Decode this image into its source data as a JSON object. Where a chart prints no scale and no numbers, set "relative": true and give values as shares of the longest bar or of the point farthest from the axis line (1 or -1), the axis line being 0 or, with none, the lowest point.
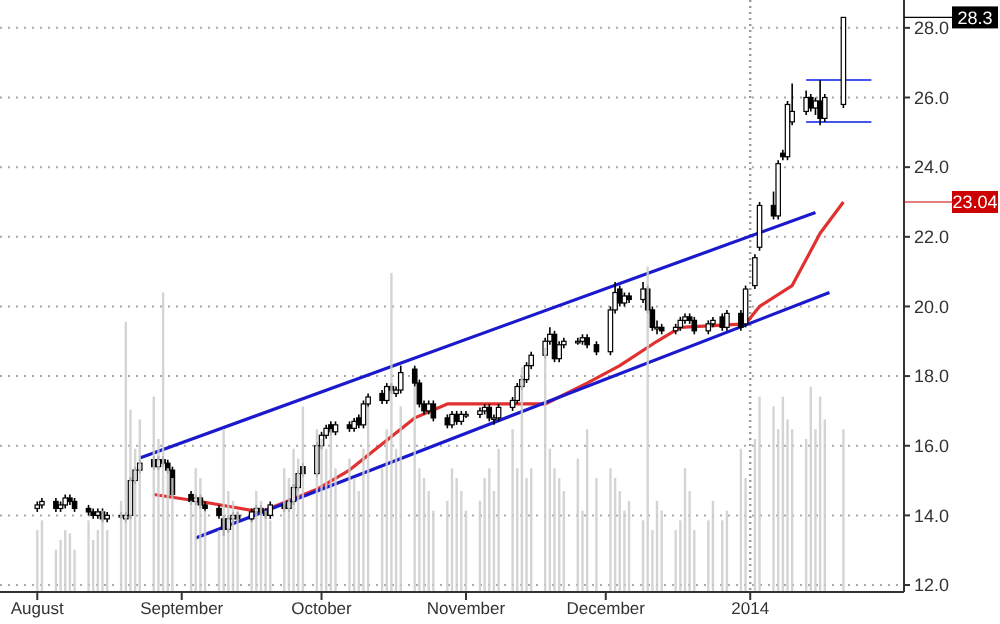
{
  "chart_data": [
    {
      "type": "candlestick",
      "x": [
        "2013-08-01",
        "2013-08-02",
        "2013-08-05",
        "2013-08-06",
        "2013-08-07",
        "2013-08-08",
        "2013-08-09",
        "2013-08-12",
        "2013-08-13",
        "2013-08-14",
        "2013-08-15",
        "2013-08-16",
        "2013-08-19",
        "2013-08-20",
        "2013-08-21",
        "2013-08-22",
        "2013-08-23",
        "2013-08-26",
        "2013-08-27",
        "2013-08-28",
        "2013-08-29",
        "2013-08-30",
        "2013-09-03",
        "2013-09-04",
        "2013-09-05",
        "2013-09-06",
        "2013-09-09",
        "2013-09-10",
        "2013-09-11",
        "2013-09-12",
        "2013-09-13",
        "2013-09-16",
        "2013-09-17",
        "2013-09-18",
        "2013-09-19",
        "2013-09-20",
        "2013-09-23",
        "2013-09-24",
        "2013-09-25",
        "2013-09-26",
        "2013-09-27",
        "2013-09-30",
        "2013-10-01",
        "2013-10-02",
        "2013-10-03",
        "2013-10-04",
        "2013-10-07",
        "2013-10-08",
        "2013-10-09",
        "2013-10-10",
        "2013-10-11",
        "2013-10-14",
        "2013-10-15",
        "2013-10-16",
        "2013-10-17",
        "2013-10-18",
        "2013-10-21",
        "2013-10-22",
        "2013-10-23",
        "2013-10-24",
        "2013-10-25",
        "2013-10-28",
        "2013-10-29",
        "2013-10-30",
        "2013-10-31",
        "2013-11-01",
        "2013-11-04",
        "2013-11-05",
        "2013-11-06",
        "2013-11-07",
        "2013-11-08",
        "2013-11-11",
        "2013-11-12",
        "2013-11-13",
        "2013-11-14",
        "2013-11-15",
        "2013-11-18",
        "2013-11-19",
        "2013-11-20",
        "2013-11-21",
        "2013-11-22",
        "2013-11-25",
        "2013-11-26",
        "2013-11-27",
        "2013-11-29",
        "2013-12-02",
        "2013-12-03",
        "2013-12-04",
        "2013-12-05",
        "2013-12-06",
        "2013-12-09",
        "2013-12-10",
        "2013-12-11",
        "2013-12-12",
        "2013-12-13",
        "2013-12-16",
        "2013-12-17",
        "2013-12-18",
        "2013-12-19",
        "2013-12-20",
        "2013-12-23",
        "2013-12-24",
        "2013-12-26",
        "2013-12-27",
        "2013-12-30",
        "2013-12-31",
        "2014-01-02",
        "2014-01-03",
        "2014-01-06",
        "2014-01-07",
        "2014-01-08",
        "2014-01-09",
        "2014-01-10",
        "2014-01-13",
        "2014-01-14",
        "2014-01-15",
        "2014-01-16",
        "2014-01-17",
        "2014-01-21"
      ],
      "ohlc": [
        [
          14.2,
          14.4,
          14.1,
          14.3
        ],
        [
          14.3,
          14.5,
          14.2,
          14.4
        ],
        [
          14.4,
          14.5,
          14.1,
          14.2
        ],
        [
          14.2,
          14.4,
          14.1,
          14.3
        ],
        [
          14.3,
          14.6,
          14.2,
          14.5
        ],
        [
          14.5,
          14.6,
          14.3,
          14.4
        ],
        [
          14.4,
          14.5,
          14.1,
          14.2
        ],
        [
          14.2,
          14.3,
          14.0,
          14.1
        ],
        [
          14.1,
          14.2,
          13.9,
          14.0
        ],
        [
          14.0,
          14.2,
          13.9,
          14.1
        ],
        [
          14.1,
          14.2,
          13.8,
          13.9
        ],
        [
          13.9,
          14.1,
          13.8,
          14.0
        ],
        [
          14.0,
          14.1,
          13.9,
          14.0
        ],
        [
          13.9,
          14.1,
          13.8,
          14.0
        ],
        [
          14.0,
          15.1,
          13.9,
          15.0
        ],
        [
          15.0,
          15.4,
          14.9,
          15.3
        ],
        [
          15.3,
          15.6,
          15.2,
          15.5
        ],
        [
          15.6,
          15.7,
          15.3,
          15.4
        ],
        [
          15.4,
          15.7,
          15.3,
          15.6
        ],
        [
          15.6,
          15.7,
          15.4,
          15.5
        ],
        [
          15.5,
          15.6,
          15.2,
          15.3
        ],
        [
          15.3,
          15.4,
          14.5,
          14.6
        ],
        [
          14.6,
          14.7,
          14.3,
          14.4
        ],
        [
          14.4,
          14.6,
          14.3,
          14.5
        ],
        [
          14.5,
          14.6,
          14.2,
          14.3
        ],
        [
          14.3,
          14.4,
          14.1,
          14.2
        ],
        [
          14.2,
          14.3,
          13.9,
          14.0
        ],
        [
          13.9,
          14.0,
          13.4,
          13.6
        ],
        [
          13.6,
          14.0,
          13.5,
          13.9
        ],
        [
          13.9,
          14.1,
          13.8,
          14.0
        ],
        [
          14.0,
          14.1,
          13.8,
          13.9
        ],
        [
          13.9,
          14.2,
          13.8,
          14.1
        ],
        [
          14.1,
          14.3,
          14.0,
          14.2
        ],
        [
          14.2,
          14.3,
          14.0,
          14.1
        ],
        [
          14.1,
          14.2,
          13.9,
          14.0
        ],
        [
          14.0,
          14.4,
          13.9,
          14.3
        ],
        [
          14.3,
          14.4,
          14.1,
          14.2
        ],
        [
          14.2,
          14.5,
          14.1,
          14.4
        ],
        [
          14.4,
          14.9,
          14.3,
          14.8
        ],
        [
          14.8,
          15.3,
          14.7,
          15.2
        ],
        [
          15.4,
          15.5,
          15.1,
          15.2
        ],
        [
          15.2,
          16.1,
          15.1,
          16.0
        ],
        [
          16.0,
          16.4,
          15.9,
          16.3
        ],
        [
          16.3,
          16.6,
          16.2,
          16.5
        ],
        [
          16.6,
          16.7,
          16.3,
          16.4
        ],
        [
          16.4,
          16.7,
          16.3,
          16.6
        ],
        [
          16.6,
          16.7,
          16.4,
          16.5
        ],
        [
          16.5,
          16.8,
          16.4,
          16.7
        ],
        [
          16.8,
          16.9,
          16.5,
          16.6
        ],
        [
          16.6,
          17.3,
          16.5,
          17.2
        ],
        [
          17.2,
          17.5,
          17.1,
          17.4
        ],
        [
          17.5,
          17.6,
          17.2,
          17.3
        ],
        [
          17.3,
          17.8,
          17.2,
          17.7
        ],
        [
          17.7,
          17.8,
          17.5,
          17.6
        ],
        [
          17.5,
          17.7,
          17.4,
          17.6
        ],
        [
          17.6,
          18.3,
          17.5,
          18.1
        ],
        [
          18.2,
          18.3,
          17.7,
          17.8
        ],
        [
          17.8,
          17.9,
          17.1,
          17.2
        ],
        [
          17.2,
          17.3,
          16.9,
          17.0
        ],
        [
          17.0,
          17.3,
          16.9,
          17.2
        ],
        [
          17.2,
          17.3,
          16.7,
          16.8
        ],
        [
          16.8,
          16.9,
          16.5,
          16.6
        ],
        [
          16.6,
          17.0,
          16.5,
          16.9
        ],
        [
          16.9,
          17.0,
          16.6,
          16.7
        ],
        [
          16.7,
          17.0,
          16.6,
          16.9
        ],
        [
          16.9,
          17.0,
          16.8,
          16.9
        ],
        [
          16.9,
          17.1,
          16.8,
          17.0
        ],
        [
          17.0,
          17.2,
          16.9,
          17.1
        ],
        [
          17.1,
          17.2,
          16.7,
          16.8
        ],
        [
          16.8,
          16.9,
          16.6,
          16.8
        ],
        [
          16.8,
          17.2,
          16.7,
          17.1
        ],
        [
          17.1,
          17.4,
          17.0,
          17.3
        ],
        [
          17.3,
          17.8,
          17.2,
          17.7
        ],
        [
          17.7,
          18.0,
          17.6,
          17.9
        ],
        [
          17.9,
          18.4,
          17.8,
          18.3
        ],
        [
          18.3,
          18.7,
          18.2,
          18.6
        ],
        [
          18.6,
          19.1,
          18.5,
          19.0
        ],
        [
          19.0,
          19.4,
          18.9,
          19.2
        ],
        [
          19.2,
          19.3,
          18.4,
          18.5
        ],
        [
          18.5,
          19.0,
          18.4,
          18.9
        ],
        [
          18.9,
          19.1,
          18.8,
          19.0
        ],
        [
          19.0,
          19.1,
          18.9,
          19.0
        ],
        [
          19.0,
          19.2,
          18.9,
          19.1
        ],
        [
          19.1,
          19.2,
          18.8,
          18.9
        ],
        [
          18.9,
          19.0,
          18.6,
          18.7
        ],
        [
          18.7,
          20.0,
          18.6,
          19.9
        ],
        [
          19.9,
          20.7,
          19.8,
          20.4
        ],
        [
          20.5,
          20.6,
          20.0,
          20.1
        ],
        [
          20.1,
          20.4,
          20.0,
          20.3
        ],
        [
          20.3,
          20.4,
          20.1,
          20.2
        ],
        [
          20.2,
          20.7,
          20.1,
          20.5
        ],
        [
          20.5,
          20.6,
          19.8,
          19.9
        ],
        [
          19.9,
          20.0,
          19.3,
          19.4
        ],
        [
          19.4,
          19.6,
          19.2,
          19.4
        ],
        [
          19.4,
          19.5,
          19.2,
          19.3
        ],
        [
          19.3,
          19.5,
          19.2,
          19.4
        ],
        [
          19.4,
          19.7,
          19.3,
          19.6
        ],
        [
          19.6,
          19.8,
          19.5,
          19.7
        ],
        [
          19.7,
          19.8,
          19.5,
          19.6
        ],
        [
          19.6,
          19.7,
          19.2,
          19.3
        ],
        [
          19.3,
          19.6,
          19.2,
          19.5
        ],
        [
          19.5,
          19.7,
          19.4,
          19.6
        ],
        [
          19.7,
          19.8,
          19.3,
          19.4
        ],
        [
          19.4,
          19.9,
          19.3,
          19.8
        ],
        [
          19.8,
          19.9,
          19.3,
          19.4
        ],
        [
          19.5,
          20.6,
          19.4,
          20.5
        ],
        [
          20.6,
          21.5,
          20.5,
          21.4
        ],
        [
          21.7,
          23.0,
          21.6,
          22.9
        ],
        [
          22.9,
          23.3,
          22.5,
          22.6
        ],
        [
          22.6,
          24.2,
          22.5,
          24.1
        ],
        [
          24.4,
          24.5,
          24.2,
          24.3
        ],
        [
          24.3,
          25.9,
          24.2,
          25.8
        ],
        [
          25.3,
          26.4,
          25.2,
          25.6
        ],
        [
          25.6,
          26.2,
          25.5,
          26.0
        ],
        [
          26.0,
          26.1,
          25.6,
          25.7
        ],
        [
          25.7,
          26.0,
          25.5,
          25.9
        ],
        [
          25.9,
          26.5,
          25.2,
          25.4
        ],
        [
          25.4,
          26.1,
          25.3,
          26.0
        ],
        [
          25.8,
          28.3,
          25.7,
          28.3
        ]
      ],
      "series": [
        {
          "type": "line",
          "color": "#e03030",
          "x": [
            "2013-08-26",
            "2013-09-05",
            "2013-09-18",
            "2013-09-30",
            "2013-10-07",
            "2013-10-21",
            "2013-10-28",
            "2013-11-18",
            "2013-11-27",
            "2013-12-04",
            "2013-12-12",
            "2013-12-17",
            "2013-12-31",
            "2014-01-03",
            "2014-01-10",
            "2014-01-16",
            "2014-01-21"
          ],
          "values": [
            14.6,
            14.4,
            14.1,
            14.75,
            15.3,
            16.8,
            17.2,
            17.2,
            17.8,
            18.3,
            19.0,
            19.4,
            19.5,
            20.0,
            20.6,
            22.1,
            23.0
          ]
        },
        {
          "type": "line",
          "color": "#1a1acc",
          "x": [
            "2013-08-23",
            "2014-01-15"
          ],
          "values": [
            15.65,
            22.7
          ]
        },
        {
          "type": "line",
          "color": "#1a1acc",
          "x": [
            "2013-09-04",
            "2014-01-18"
          ],
          "values": [
            13.35,
            20.4
          ]
        },
        {
          "type": "line",
          "color": "#4455ee",
          "x": [
            "2014-01-13",
            "2014-01-27"
          ],
          "values": [
            26.5,
            26.5
          ]
        },
        {
          "type": "line",
          "color": "#4455ee",
          "x": [
            "2014-01-13",
            "2014-01-27"
          ],
          "values": [
            25.3,
            25.3
          ]
        }
      ],
      "xlim": [
        "2013-07-24",
        "2014-02-03"
      ],
      "xticks": [
        {
          "value": "2013-08-01",
          "label": "August"
        },
        {
          "value": "2013-09-01",
          "label": "September"
        },
        {
          "value": "2013-10-01",
          "label": "October"
        },
        {
          "value": "2013-11-01",
          "label": "November"
        },
        {
          "value": "2013-12-01",
          "label": "December"
        },
        {
          "value": "2014-01-01",
          "label": "2014"
        }
      ],
      "ylim": [
        11.8,
        28.8
      ],
      "yticks": [
        {
          "value": 12,
          "label": "12.0"
        },
        {
          "value": 14,
          "label": "14.0"
        },
        {
          "value": 16,
          "label": "16.0"
        },
        {
          "value": 18,
          "label": "18.0"
        },
        {
          "value": 20,
          "label": "20.0"
        },
        {
          "value": 22,
          "label": "22.0"
        },
        {
          "value": 24,
          "label": "24.0"
        },
        {
          "value": 26,
          "label": "26.0"
        },
        {
          "value": 28,
          "label": "28.0"
        }
      ],
      "grid": "y",
      "ref_lines": [
        {
          "axis": "x",
          "value": "2014-01-01",
          "line_style": "dotted",
          "color": "#999999"
        }
      ],
      "annotations": [
        "28.3",
        "23.04"
      ]
    },
    {
      "type": "bar",
      "relative": true,
      "color": "#cccccc",
      "xlim": [
        "2013-07-24",
        "2014-02-03"
      ],
      "x": [
        "2013-08-01",
        "2013-08-02",
        "2013-08-05",
        "2013-08-06",
        "2013-08-07",
        "2013-08-08",
        "2013-08-09",
        "2013-08-12",
        "2013-08-13",
        "2013-08-14",
        "2013-08-15",
        "2013-08-16",
        "2013-08-19",
        "2013-08-20",
        "2013-08-21",
        "2013-08-22",
        "2013-08-23",
        "2013-08-26",
        "2013-08-27",
        "2013-08-28",
        "2013-08-29",
        "2013-08-30",
        "2013-09-03",
        "2013-09-04",
        "2013-09-05",
        "2013-09-06",
        "2013-09-09",
        "2013-09-10",
        "2013-09-11",
        "2013-09-12",
        "2013-09-13",
        "2013-09-16",
        "2013-09-17",
        "2013-09-18",
        "2013-09-19",
        "2013-09-20",
        "2013-09-23",
        "2013-09-24",
        "2013-09-25",
        "2013-09-26",
        "2013-09-27",
        "2013-09-30",
        "2013-10-01",
        "2013-10-02",
        "2013-10-03",
        "2013-10-04",
        "2013-10-07",
        "2013-10-08",
        "2013-10-09",
        "2013-10-10",
        "2013-10-11",
        "2013-10-14",
        "2013-10-15",
        "2013-10-16",
        "2013-10-17",
        "2013-10-18",
        "2013-10-21",
        "2013-10-22",
        "2013-10-23",
        "2013-10-24",
        "2013-10-25",
        "2013-10-28",
        "2013-10-29",
        "2013-10-30",
        "2013-10-31",
        "2013-11-01",
        "2013-11-04",
        "2013-11-05",
        "2013-11-06",
        "2013-11-07",
        "2013-11-08",
        "2013-11-11",
        "2013-11-12",
        "2013-11-13",
        "2013-11-14",
        "2013-11-15",
        "2013-11-18",
        "2013-11-19",
        "2013-11-20",
        "2013-11-21",
        "2013-11-22",
        "2013-11-25",
        "2013-11-26",
        "2013-11-27",
        "2013-11-29",
        "2013-12-02",
        "2013-12-03",
        "2013-12-04",
        "2013-12-05",
        "2013-12-06",
        "2013-12-09",
        "2013-12-10",
        "2013-12-11",
        "2013-12-12",
        "2013-12-13",
        "2013-12-16",
        "2013-12-17",
        "2013-12-18",
        "2013-12-19",
        "2013-12-20",
        "2013-12-23",
        "2013-12-24",
        "2013-12-26",
        "2013-12-27",
        "2013-12-30",
        "2013-12-31",
        "2014-01-02",
        "2014-01-03",
        "2014-01-06",
        "2014-01-07",
        "2014-01-08",
        "2014-01-09",
        "2014-01-10",
        "2014-01-13",
        "2014-01-14",
        "2014-01-15",
        "2014-01-16",
        "2014-01-17",
        "2014-01-21"
      ],
      "values": [
        0.19,
        0.22,
        0.13,
        0.16,
        0.19,
        0.18,
        0.13,
        0.22,
        0.16,
        0.19,
        0.25,
        0.19,
        0.28,
        0.83,
        0.56,
        0.44,
        0.53,
        0.6,
        0.47,
        0.92,
        0.38,
        0.35,
        0.28,
        0.38,
        0.35,
        0.25,
        0.19,
        0.5,
        0.31,
        0.28,
        0.25,
        0.22,
        0.31,
        0.28,
        0.25,
        0.22,
        0.38,
        0.35,
        0.44,
        0.41,
        0.57,
        0.5,
        0.47,
        0.44,
        0.5,
        0.38,
        0.41,
        0.35,
        0.31,
        0.44,
        0.57,
        0.38,
        0.5,
        0.98,
        0.44,
        0.57,
        0.63,
        0.38,
        0.35,
        0.31,
        0.25,
        0.28,
        0.38,
        0.35,
        0.31,
        0.25,
        0.28,
        0.35,
        0.38,
        0.31,
        0.44,
        0.5,
        0.38,
        0.69,
        0.35,
        0.38,
        0.75,
        0.44,
        0.38,
        0.35,
        0.31,
        0.41,
        0.25,
        0.5,
        0.35,
        0.38,
        0.35,
        0.31,
        0.25,
        0.28,
        0.22,
        1,
        0.19,
        0.28,
        0.25,
        0.19,
        0.22,
        0.38,
        0.31,
        0.19,
        0.22,
        0.28,
        0.22,
        0.25,
        0.44,
        0.35,
        0.47,
        0.6,
        0.57,
        0.5,
        0.6,
        0.53,
        0.5,
        0.47,
        0.63,
        0.5,
        0.6,
        0.53,
        0.5
      ]
    }
  ]
}
